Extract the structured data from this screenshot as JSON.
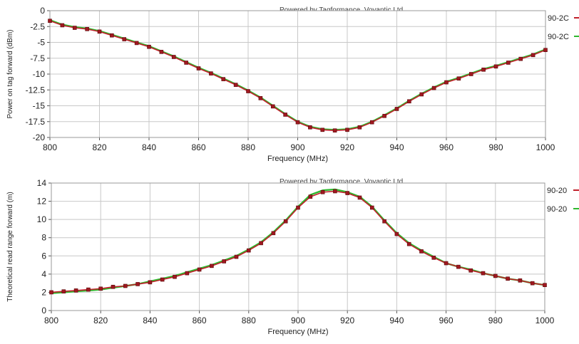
{
  "watermark": "Powered by Tagformance, Voyantic Ltd.",
  "colors": {
    "series_a": "#c0202a",
    "series_b": "#2eb82e",
    "grid": "#c8c8c8",
    "axis": "#555555"
  },
  "chart_data": [
    {
      "type": "line",
      "title": "",
      "xlabel": "Frequency (MHz)",
      "ylabel": "Power on tag forward (dBm)",
      "xlim": [
        800,
        1000
      ],
      "ylim": [
        -20,
        0
      ],
      "xticks": [
        800,
        820,
        840,
        860,
        880,
        900,
        920,
        940,
        960,
        980,
        1000
      ],
      "yticks": [
        0,
        -2.5,
        -5,
        -7.5,
        -10,
        -12.5,
        -15,
        -17.5,
        -20
      ],
      "ytick_labels": [
        "0",
        "-2.5",
        "-5",
        "-7.5",
        "-10",
        "-12.5",
        "-15",
        "-17.5",
        "-20"
      ],
      "grid": true,
      "legend_position": "right",
      "x": [
        800,
        805,
        810,
        815,
        820,
        825,
        830,
        835,
        840,
        845,
        850,
        855,
        860,
        865,
        870,
        875,
        880,
        885,
        890,
        895,
        900,
        905,
        910,
        915,
        920,
        925,
        930,
        935,
        940,
        945,
        950,
        955,
        960,
        965,
        970,
        975,
        980,
        985,
        990,
        995,
        1000
      ],
      "series": [
        {
          "name": "90-2C",
          "marker": "square",
          "values": [
            -1.6,
            -2.3,
            -2.7,
            -2.9,
            -3.3,
            -3.9,
            -4.5,
            -5.1,
            -5.7,
            -6.5,
            -7.3,
            -8.2,
            -9.1,
            -9.9,
            -10.8,
            -11.7,
            -12.7,
            -13.8,
            -15.1,
            -16.4,
            -17.6,
            -18.4,
            -18.8,
            -18.9,
            -18.8,
            -18.4,
            -17.6,
            -16.6,
            -15.5,
            -14.3,
            -13.2,
            -12.2,
            -11.3,
            -10.7,
            -10.0,
            -9.3,
            -8.8,
            -8.2,
            -7.6,
            -7.0,
            -6.2
          ]
        },
        {
          "name": "90-2C",
          "marker": "none",
          "values": [
            -1.5,
            -2.2,
            -2.6,
            -2.8,
            -3.2,
            -3.8,
            -4.4,
            -5.0,
            -5.6,
            -6.4,
            -7.2,
            -8.1,
            -9.0,
            -9.8,
            -10.7,
            -11.6,
            -12.6,
            -13.7,
            -15.0,
            -16.3,
            -17.5,
            -18.3,
            -18.7,
            -18.8,
            -18.7,
            -18.3,
            -17.5,
            -16.5,
            -15.4,
            -14.2,
            -13.1,
            -12.1,
            -11.2,
            -10.6,
            -9.9,
            -9.2,
            -8.7,
            -8.1,
            -7.5,
            -6.9,
            -6.1
          ]
        }
      ]
    },
    {
      "type": "line",
      "title": "",
      "xlabel": "Frequency (MHz)",
      "ylabel": "Theoretical read range forward (m)",
      "xlim": [
        800,
        1000
      ],
      "ylim": [
        0,
        14
      ],
      "xticks": [
        800,
        820,
        840,
        860,
        880,
        900,
        920,
        940,
        960,
        980,
        1000
      ],
      "yticks": [
        0,
        2,
        4,
        6,
        8,
        10,
        12,
        14
      ],
      "ytick_labels": [
        "0",
        "2",
        "4",
        "6",
        "8",
        "10",
        "12",
        "14"
      ],
      "grid": true,
      "legend_position": "right",
      "x": [
        800,
        805,
        810,
        815,
        820,
        825,
        830,
        835,
        840,
        845,
        850,
        855,
        860,
        865,
        870,
        875,
        880,
        885,
        890,
        895,
        900,
        905,
        910,
        915,
        920,
        925,
        930,
        935,
        940,
        945,
        950,
        955,
        960,
        965,
        970,
        975,
        980,
        985,
        990,
        995,
        1000
      ],
      "series": [
        {
          "name": "90-20",
          "marker": "square",
          "values": [
            2.0,
            2.1,
            2.2,
            2.3,
            2.4,
            2.6,
            2.7,
            2.9,
            3.1,
            3.4,
            3.7,
            4.1,
            4.5,
            4.9,
            5.4,
            5.9,
            6.6,
            7.4,
            8.5,
            9.8,
            11.3,
            12.5,
            13.0,
            13.1,
            12.9,
            12.4,
            11.3,
            9.8,
            8.4,
            7.3,
            6.5,
            5.8,
            5.2,
            4.8,
            4.4,
            4.1,
            3.8,
            3.5,
            3.3,
            3.0,
            2.8
          ]
        },
        {
          "name": "90-20",
          "marker": "none",
          "values": [
            1.9,
            2.0,
            2.1,
            2.2,
            2.3,
            2.5,
            2.7,
            2.9,
            3.2,
            3.5,
            3.8,
            4.2,
            4.6,
            5.0,
            5.5,
            6.0,
            6.7,
            7.5,
            8.6,
            9.9,
            11.4,
            12.7,
            13.2,
            13.3,
            13.0,
            12.5,
            11.4,
            9.9,
            8.5,
            7.4,
            6.6,
            5.9,
            5.2,
            4.8,
            4.5,
            4.1,
            3.8,
            3.5,
            3.3,
            3.0,
            2.8
          ]
        }
      ]
    }
  ]
}
